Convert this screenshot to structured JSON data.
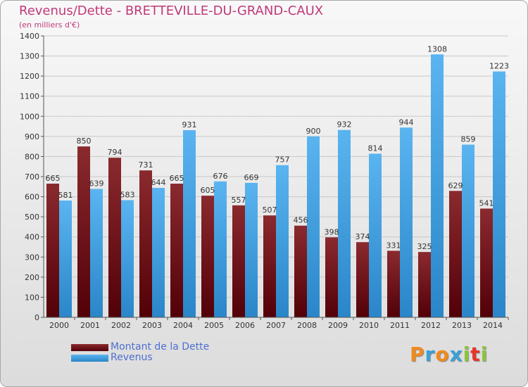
{
  "title": "Revenus/Dette - BRETTEVILLE-DU-GRAND-CAUX",
  "subtitle": "(en milliers d'€)",
  "logo": {
    "text": "Proxiti",
    "colors": [
      "#f08a1c",
      "#3aa0d8",
      "#f08a1c",
      "#3aa0d8",
      "#8cc43c",
      "#e8342a",
      "#8cc43c"
    ]
  },
  "legend": [
    {
      "label": "Montant de la Dette",
      "color": "#6b0f14"
    },
    {
      "label": "Revenus",
      "color": "#3c9ee2"
    }
  ],
  "chart_data": {
    "type": "bar",
    "title": "Revenus/Dette - BRETTEVILLE-DU-GRAND-CAUX",
    "subtitle": "(en milliers d'€)",
    "categories": [
      "2000",
      "2001",
      "2002",
      "2003",
      "2004",
      "2005",
      "2006",
      "2007",
      "2008",
      "2009",
      "2010",
      "2011",
      "2012",
      "2013",
      "2014"
    ],
    "series": [
      {
        "name": "Montant de la Dette",
        "color": "#6b0f14",
        "values": [
          665,
          850,
          794,
          731,
          665,
          605,
          557,
          507,
          456,
          398,
          374,
          331,
          325,
          629,
          541
        ]
      },
      {
        "name": "Revenus",
        "color": "#3c9ee2",
        "values": [
          581,
          639,
          583,
          644,
          931,
          676,
          669,
          757,
          900,
          932,
          814,
          944,
          1308,
          859,
          1223
        ]
      }
    ],
    "ylim": [
      0,
      1400
    ],
    "yticks": [
      0,
      100,
      200,
      300,
      400,
      500,
      600,
      700,
      800,
      900,
      1000,
      1100,
      1200,
      1300,
      1400
    ],
    "grid": true,
    "legend_position": "bottom-left"
  }
}
